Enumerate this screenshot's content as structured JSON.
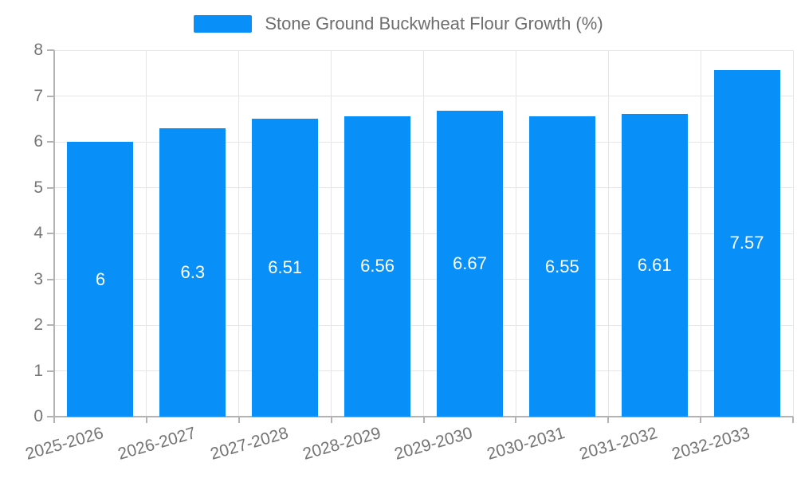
{
  "chart_data": {
    "type": "bar",
    "title": "Stone Ground Buckwheat Flour Growth (%)",
    "legend": {
      "position": "top-center",
      "entries": [
        {
          "label": "Stone Ground Buckwheat Flour Growth (%)",
          "color": "#0890f8"
        }
      ]
    },
    "categories": [
      "2025-2026",
      "2026-2027",
      "2027-2028",
      "2028-2029",
      "2029-2030",
      "2030-2031",
      "2031-2032",
      "2032-2033"
    ],
    "values": [
      6,
      6.3,
      6.51,
      6.56,
      6.67,
      6.55,
      6.61,
      7.57
    ],
    "value_labels": [
      "6",
      "6.3",
      "6.51",
      "6.56",
      "6.67",
      "6.55",
      "6.61",
      "7.57"
    ],
    "xlabel": "",
    "ylabel": "",
    "ylim": [
      0,
      8
    ],
    "y_ticks": [
      0,
      1,
      2,
      3,
      4,
      5,
      6,
      7,
      8
    ],
    "grid": true,
    "colors": {
      "bar": "#0890f8",
      "grid": "#e6e6e6",
      "axis": "#b3b3b3",
      "tick_label": "#757575",
      "legend_text": "#6e6e6e",
      "bar_label": "#ffffff",
      "background": "#ffffff"
    }
  }
}
